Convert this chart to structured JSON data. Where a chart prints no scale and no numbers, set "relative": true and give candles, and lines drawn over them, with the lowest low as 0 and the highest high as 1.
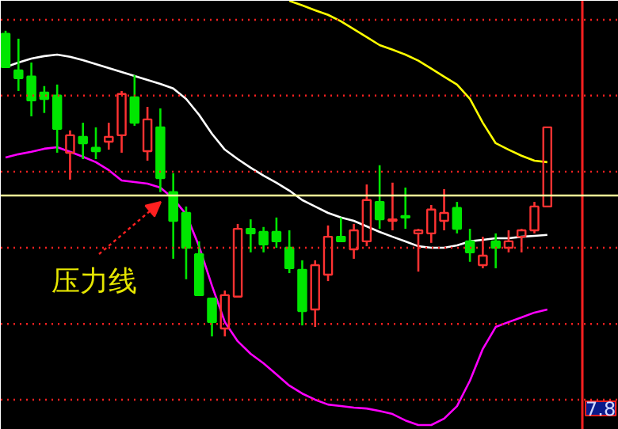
{
  "chart_data": {
    "type": "candlestick",
    "relative": true,
    "categories": [
      null,
      null,
      null,
      null,
      null,
      null,
      null,
      null,
      null,
      null,
      null,
      null,
      null,
      null,
      null,
      null,
      null,
      null,
      null,
      null,
      null,
      null,
      null,
      null,
      null,
      null,
      null,
      null,
      null,
      null,
      null,
      null,
      null,
      null,
      null,
      null,
      null,
      null,
      null,
      null,
      null,
      null,
      null
    ],
    "ohlc": [
      [
        0.99,
        1.0,
        0.881,
        0.881
      ],
      [
        0.87,
        0.974,
        0.803,
        0.845
      ],
      [
        0.85,
        0.896,
        0.72,
        0.772
      ],
      [
        0.798,
        0.819,
        0.731,
        0.777
      ],
      [
        0.788,
        0.824,
        0.601,
        0.679
      ],
      [
        0.601,
        0.674,
        0.513,
        0.658
      ],
      [
        0.653,
        0.699,
        0.58,
        0.632
      ],
      [
        0.617,
        0.684,
        0.58,
        0.606
      ],
      [
        0.637,
        0.699,
        0.611,
        0.653
      ],
      [
        0.658,
        0.803,
        0.601,
        0.793
      ],
      [
        0.782,
        0.855,
        0.689,
        0.699
      ],
      [
        0.606,
        0.751,
        0.575,
        0.71
      ],
      [
        0.684,
        0.746,
        0.472,
        0.518
      ],
      [
        0.472,
        0.534,
        0.254,
        0.378
      ],
      [
        0.404,
        0.425,
        0.187,
        0.29
      ],
      [
        0.269,
        0.311,
        0.135,
        0.135
      ],
      [
        0.124,
        0.124,
        0.0,
        0.047
      ],
      [
        0.026,
        0.15,
        0.0,
        0.135
      ],
      [
        0.13,
        0.368,
        0.13,
        0.352
      ],
      [
        0.352,
        0.383,
        0.275,
        0.337
      ],
      [
        0.342,
        0.358,
        0.275,
        0.301
      ],
      [
        0.342,
        0.389,
        0.29,
        0.311
      ],
      [
        0.29,
        0.347,
        0.207,
        0.223
      ],
      [
        0.218,
        0.249,
        0.036,
        0.083
      ],
      [
        0.088,
        0.249,
        0.031,
        0.233
      ],
      [
        0.202,
        0.363,
        0.181,
        0.326
      ],
      [
        0.326,
        0.389,
        0.311,
        0.311
      ],
      [
        0.285,
        0.368,
        0.254,
        0.347
      ],
      [
        0.311,
        0.497,
        0.295,
        0.446
      ],
      [
        0.44,
        0.56,
        0.352,
        0.383
      ],
      [
        0.378,
        0.503,
        0.347,
        0.383
      ],
      [
        0.394,
        0.487,
        0.352,
        0.389
      ],
      [
        0.337,
        0.352,
        0.212,
        0.347
      ],
      [
        0.337,
        0.43,
        0.306,
        0.415
      ],
      [
        0.378,
        0.482,
        0.347,
        0.404
      ],
      [
        0.42,
        0.44,
        0.337,
        0.352
      ],
      [
        0.311,
        0.352,
        0.244,
        0.275
      ],
      [
        0.233,
        0.326,
        0.223,
        0.264
      ],
      [
        0.311,
        0.337,
        0.223,
        0.29
      ],
      [
        0.29,
        0.347,
        0.275,
        0.311
      ],
      [
        0.326,
        0.352,
        0.275,
        0.347
      ],
      [
        0.347,
        0.44,
        0.337,
        0.425
      ],
      [
        0.425,
        0.684,
        0.425,
        0.684
      ]
    ],
    "series": [
      {
        "type": "line",
        "color": "#ffff00",
        "values": [
          null,
          null,
          null,
          null,
          null,
          null,
          null,
          null,
          null,
          null,
          null,
          null,
          null,
          null,
          null,
          null,
          null,
          null,
          null,
          null,
          null,
          null,
          1.098,
          1.083,
          1.067,
          1.052,
          1.031,
          1.005,
          0.979,
          0.953,
          0.938,
          0.922,
          0.902,
          0.876,
          0.85,
          0.824,
          0.777,
          0.699,
          0.632,
          0.611,
          0.591,
          0.575,
          0.57
        ]
      },
      {
        "type": "line",
        "color": "#ffffff",
        "values": [
          0.881,
          0.896,
          0.909,
          0.917,
          0.922,
          0.915,
          0.904,
          0.891,
          0.878,
          0.865,
          0.852,
          0.839,
          0.826,
          0.811,
          0.777,
          0.725,
          0.663,
          0.611,
          0.58,
          0.552,
          0.526,
          0.503,
          0.477,
          0.446,
          0.425,
          0.404,
          0.389,
          0.378,
          0.36,
          0.342,
          0.326,
          0.311,
          0.295,
          0.29,
          0.29,
          0.298,
          0.311,
          0.316,
          0.321,
          0.321,
          0.326,
          0.329,
          0.332
        ]
      },
      {
        "type": "line",
        "color": "#ff00ff",
        "values": [
          0.585,
          0.596,
          0.604,
          0.614,
          0.619,
          0.604,
          0.588,
          0.57,
          0.544,
          0.51,
          0.505,
          0.5,
          0.487,
          0.451,
          0.399,
          0.295,
          0.166,
          0.047,
          -0.016,
          -0.057,
          -0.088,
          -0.124,
          -0.161,
          -0.187,
          -0.207,
          -0.223,
          -0.228,
          -0.233,
          -0.236,
          -0.244,
          -0.254,
          -0.275,
          -0.29,
          -0.29,
          -0.269,
          -0.228,
          -0.145,
          -0.041,
          0.031,
          0.047,
          0.062,
          0.078,
          0.088
        ]
      }
    ],
    "ref_lines": [
      {
        "axis": "y",
        "value": 0.461,
        "color": "#ffff99"
      },
      {
        "axis": "y",
        "value": 1.036,
        "color": "#ff2020",
        "line_style": "dotted"
      },
      {
        "axis": "y",
        "value": 0.788,
        "color": "#ff2020",
        "line_style": "dotted"
      },
      {
        "axis": "y",
        "value": 0.539,
        "color": "#ff2020",
        "line_style": "dotted"
      },
      {
        "axis": "y",
        "value": 0.29,
        "color": "#ff2020",
        "line_style": "dotted"
      },
      {
        "axis": "y",
        "value": 0.041,
        "color": "#ff2020",
        "line_style": "dotted"
      },
      {
        "axis": "y",
        "value": -0.207,
        "color": "#ff2020",
        "line_style": "dotted"
      }
    ],
    "annotations": [
      "压力线",
      "7.8"
    ]
  }
}
